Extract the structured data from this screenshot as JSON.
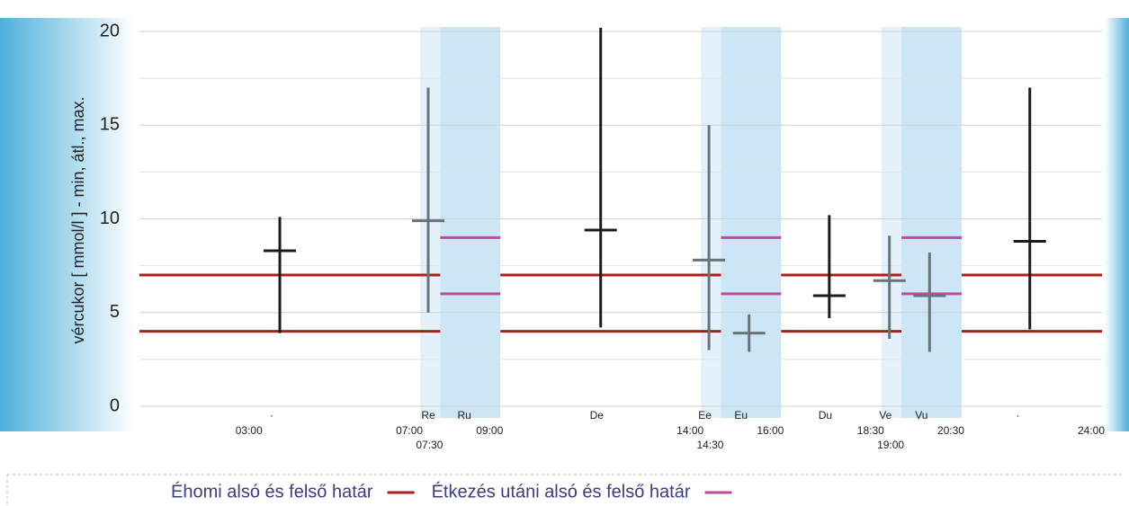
{
  "chart_data": {
    "type": "range",
    "y_label": "vércukor [ mmol/l ] - min, átl., max.",
    "ylim": [
      0,
      20
    ],
    "yticks": [
      0,
      5,
      10,
      15,
      20
    ],
    "minor_yticks": [
      2.5,
      7.5,
      12.5,
      17.5
    ],
    "grid": true,
    "xlim": [
      0,
      24
    ],
    "xticks": [
      {
        "value": 3,
        "label": "03:00"
      },
      {
        "value": 7,
        "label": "07:00"
      },
      {
        "value": 7.5,
        "label": "07:30"
      },
      {
        "value": 9,
        "label": "09:00"
      },
      {
        "value": 14,
        "label": "14:00"
      },
      {
        "value": 14.5,
        "label": "14:30"
      },
      {
        "value": 16,
        "label": "16:00"
      },
      {
        "value": 18.5,
        "label": "18:30"
      },
      {
        "value": 19,
        "label": "19:00"
      },
      {
        "value": 20.5,
        "label": "20:30"
      },
      {
        "value": 24,
        "label": "24:00"
      }
    ],
    "category_labels": [
      {
        "label": "·",
        "x": 3.3
      },
      {
        "label": "Re",
        "x": 7.2
      },
      {
        "label": "Ru",
        "x": 8.1
      },
      {
        "label": "De",
        "x": 11.4
      },
      {
        "label": "Ee",
        "x": 14.1
      },
      {
        "label": "Eu",
        "x": 15.0
      },
      {
        "label": "Du",
        "x": 17.1
      },
      {
        "label": "Ve",
        "x": 18.6
      },
      {
        "label": "Vu",
        "x": 19.5
      },
      {
        "label": "·",
        "x": 21.9
      }
    ],
    "meal_windows": [
      {
        "start": 7,
        "shade_start": 7.5,
        "end": 9
      },
      {
        "start": 14,
        "shade_start": 14.5,
        "end": 16
      },
      {
        "start": 18.5,
        "shade_start": 19,
        "end": 20.5
      }
    ],
    "bars": [
      {
        "x": 3.5,
        "min": 3.9,
        "mean": 8.3,
        "max": 10.1,
        "color": "#1c1c1c"
      },
      {
        "x": 7.2,
        "min": 5,
        "mean": 9.9,
        "max": 17,
        "color": "#67737a"
      },
      {
        "x": 11.5,
        "min": 4.2,
        "mean": 9.4,
        "max": 20.2,
        "color": "#1c1c1c"
      },
      {
        "x": 14.2,
        "min": 3,
        "mean": 7.8,
        "max": 15,
        "color": "#67737a"
      },
      {
        "x": 15.2,
        "min": 2.9,
        "mean": 3.9,
        "max": 4.9,
        "color": "#67737a"
      },
      {
        "x": 17.2,
        "min": 4.7,
        "mean": 5.9,
        "max": 10.2,
        "color": "#1c1c1c"
      },
      {
        "x": 18.7,
        "min": 3.6,
        "mean": 6.7,
        "max": 9.1,
        "color": "#67737a"
      },
      {
        "x": 19.7,
        "min": 2.9,
        "mean": 5.9,
        "max": 8.2,
        "color": "#67737a"
      },
      {
        "x": 22.2,
        "min": 4.1,
        "mean": 8.8,
        "max": 17,
        "color": "#1c1c1c"
      }
    ],
    "limits": [
      {
        "name": "Éhomi alsó és felső határ",
        "color": "#a8201c",
        "lower": 4,
        "upper": 7,
        "periods": [
          [
            0,
            7.5
          ],
          [
            9,
            14.5
          ],
          [
            16,
            19
          ],
          [
            20.5,
            24
          ]
        ]
      },
      {
        "name": "Étkezés utáni alsó és felső határ",
        "color": "#c24a9c",
        "lower": 6,
        "upper": 9,
        "periods": [
          [
            7.5,
            9
          ],
          [
            14.5,
            16
          ],
          [
            19,
            20.5
          ]
        ]
      }
    ]
  }
}
